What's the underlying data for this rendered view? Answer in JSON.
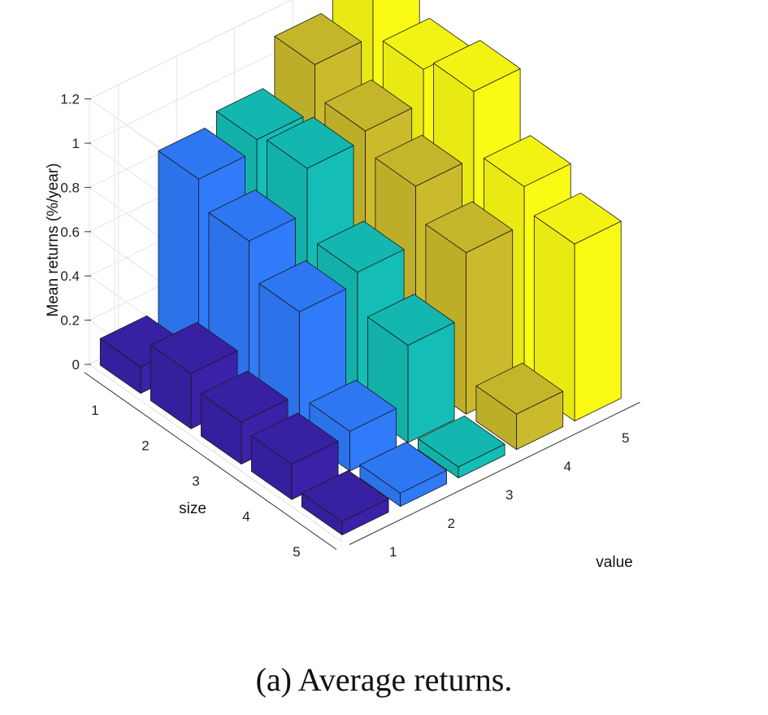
{
  "chart_data": {
    "type": "bar3d",
    "zlabel": "Mean returns (%/year)",
    "xlabel": "size",
    "ylabel": "value",
    "zticks": [
      "0",
      "0.2",
      "0.4",
      "0.6",
      "0.8",
      "1",
      "1.2"
    ],
    "zlim": [
      0,
      1.2
    ],
    "size_ticks": [
      "1",
      "2",
      "3",
      "4",
      "5"
    ],
    "value_ticks": [
      "1",
      "2",
      "3",
      "4",
      "5"
    ],
    "grid": true,
    "colors_by_value": [
      "#3a21a8",
      "#2f7bfa",
      "#14bdb5",
      "#cbbb2c",
      "#fafa14"
    ],
    "series": [
      {
        "name": "",
        "value": 1,
        "values": [
          0.12,
          0.25,
          0.19,
          0.16,
          0.06
        ]
      },
      {
        "name": "",
        "value": 2,
        "values": [
          0.84,
          0.72,
          0.56,
          0.18,
          0.06
        ]
      },
      {
        "name": "",
        "value": 3,
        "values": [
          0.89,
          0.92,
          0.61,
          0.44,
          0.05
        ]
      },
      {
        "name": "",
        "value": 4,
        "values": [
          1.1,
          0.96,
          0.87,
          0.73,
          0.16
        ]
      },
      {
        "name": "",
        "value": 5,
        "values": [
          1.27,
          1.11,
          1.17,
          0.9,
          0.8
        ]
      }
    ]
  },
  "caption": "(a)  Average returns."
}
